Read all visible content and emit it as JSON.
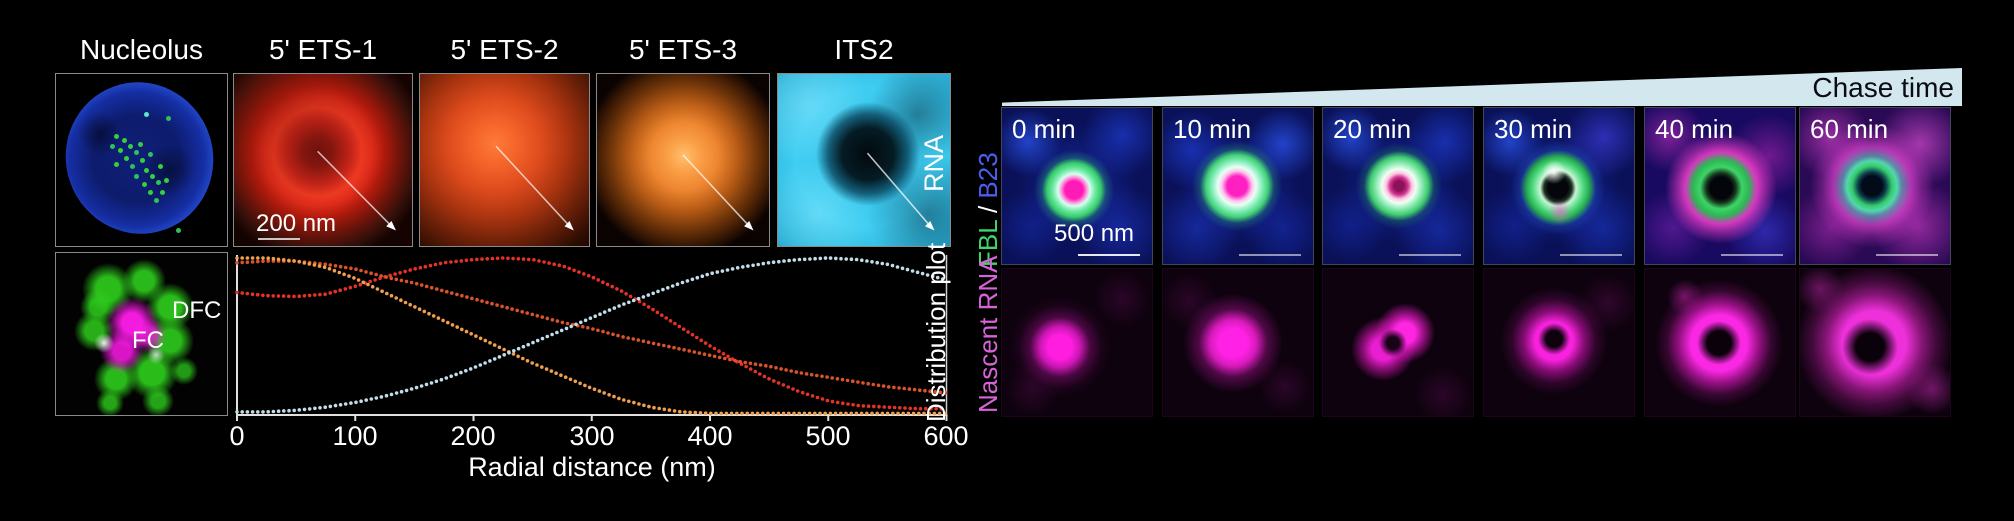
{
  "left": {
    "panel_titles": [
      "Nucleolus",
      "5' ETS-1",
      "5' ETS-2",
      "5' ETS-3",
      "ITS2"
    ],
    "row_labels": {
      "top": "RNA",
      "bottom": "Distribution plot"
    },
    "scale_bar_label": "200 nm",
    "nucleolus_inset": {
      "dfc": "DFC",
      "fc": "FC"
    }
  },
  "chart_data": {
    "type": "line",
    "style": "dotted",
    "title": "Distribution plot",
    "xlabel": "Radial distance (nm)",
    "ylabel": "",
    "xlim": [
      0,
      600
    ],
    "ylim": [
      0,
      1
    ],
    "x_ticks": [
      0,
      100,
      200,
      300,
      400,
      500,
      600
    ],
    "grid": false,
    "legend_position": "none",
    "series": [
      {
        "name": "5' ETS-1",
        "color": "#e63226",
        "x": [
          0,
          25,
          50,
          75,
          100,
          125,
          150,
          175,
          200,
          225,
          250,
          275,
          300,
          325,
          350,
          375,
          400,
          425,
          450,
          475,
          500,
          525,
          550,
          575,
          600
        ],
        "values": [
          0.78,
          0.76,
          0.755,
          0.77,
          0.82,
          0.88,
          0.93,
          0.97,
          0.99,
          1.0,
          0.99,
          0.95,
          0.88,
          0.79,
          0.68,
          0.56,
          0.44,
          0.33,
          0.23,
          0.15,
          0.09,
          0.06,
          0.05,
          0.04,
          0.04
        ]
      },
      {
        "name": "5' ETS-2",
        "color": "#db5328",
        "x": [
          0,
          25,
          50,
          75,
          100,
          125,
          150,
          175,
          200,
          225,
          250,
          275,
          300,
          325,
          350,
          375,
          400,
          425,
          450,
          475,
          500,
          525,
          550,
          575,
          600
        ],
        "values": [
          0.97,
          0.98,
          0.98,
          0.96,
          0.93,
          0.88,
          0.84,
          0.79,
          0.74,
          0.69,
          0.64,
          0.59,
          0.55,
          0.5,
          0.46,
          0.42,
          0.38,
          0.34,
          0.31,
          0.27,
          0.24,
          0.21,
          0.18,
          0.16,
          0.14
        ]
      },
      {
        "name": "5' ETS-3",
        "color": "#f0a04a",
        "x": [
          0,
          25,
          50,
          75,
          100,
          125,
          150,
          175,
          200,
          225,
          250,
          275,
          300,
          325,
          350,
          375,
          400,
          425,
          450,
          475,
          500,
          525,
          550,
          575,
          600
        ],
        "values": [
          1.0,
          1.0,
          0.98,
          0.94,
          0.87,
          0.78,
          0.69,
          0.6,
          0.51,
          0.42,
          0.33,
          0.25,
          0.17,
          0.1,
          0.05,
          0.02,
          0.01,
          0.01,
          0.01,
          0.01,
          0.01,
          0.01,
          0.01,
          0.01,
          0.01
        ]
      },
      {
        "name": "ITS2",
        "color": "#c3dcea",
        "x": [
          0,
          25,
          50,
          75,
          100,
          125,
          150,
          175,
          200,
          225,
          250,
          275,
          300,
          325,
          350,
          375,
          400,
          425,
          450,
          475,
          500,
          525,
          550,
          575,
          600
        ],
        "values": [
          0.02,
          0.02,
          0.03,
          0.05,
          0.08,
          0.12,
          0.17,
          0.23,
          0.3,
          0.38,
          0.46,
          0.54,
          0.62,
          0.7,
          0.77,
          0.84,
          0.9,
          0.94,
          0.97,
          0.99,
          1.0,
          0.99,
          0.96,
          0.91,
          0.86
        ]
      }
    ]
  },
  "right": {
    "header": "Chase time",
    "time_labels": [
      "0 min",
      "10 min",
      "20 min",
      "30 min",
      "40 min",
      "60 min"
    ],
    "row1_label": {
      "fbl": "FBL",
      "separator": " / ",
      "b23": "B23"
    },
    "row2_label": "Nascent RNA",
    "scale_bar_label": "500 nm",
    "colors": {
      "fbl": "#3fd46c",
      "b23": "#4a5ef0",
      "nascent_rna": "#d863d8",
      "chase_band": "#d3e8ee"
    }
  }
}
